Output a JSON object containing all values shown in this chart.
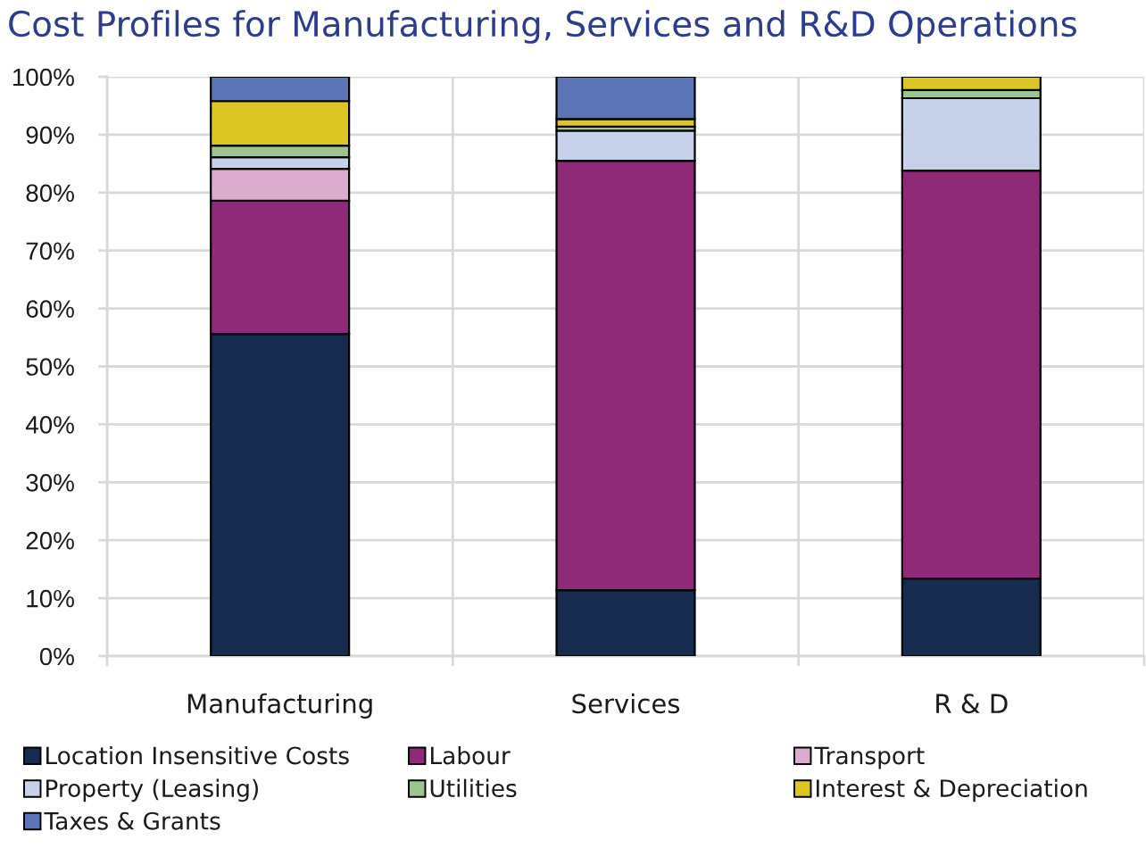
{
  "chart_data": {
    "type": "bar",
    "title": "Cost Profiles for Manufacturing, Services and R&D Operations",
    "categories": [
      "Manufacturing",
      "Services",
      "R & D"
    ],
    "stacked": true,
    "series": [
      {
        "name": "Location Insensitive Costs",
        "color": "#162b4e",
        "values": [
          55.6,
          11.4,
          13.4
        ]
      },
      {
        "name": "Labour",
        "color": "#8f2a78",
        "values": [
          23.0,
          74.1,
          70.4
        ]
      },
      {
        "name": "Transport",
        "color": "#dcaccf",
        "values": [
          5.5,
          null,
          null
        ]
      },
      {
        "name": "Property (Leasing)",
        "color": "#c7d2ea",
        "values": [
          2.0,
          5.2,
          12.5
        ]
      },
      {
        "name": "Utilities",
        "color": "#9dc38f",
        "values": [
          2.0,
          0.7,
          1.4
        ]
      },
      {
        "name": "Interest & Depreciation",
        "color": "#dbc623",
        "values": [
          7.7,
          1.3,
          2.3
        ]
      },
      {
        "name": "Taxes & Grants",
        "color": "#5b75b8",
        "values": [
          4.2,
          7.3,
          null
        ]
      }
    ],
    "ylim": [
      0,
      100
    ],
    "yticks": [
      {
        "value": 0,
        "label": "0%"
      },
      {
        "value": 10,
        "label": "10%"
      },
      {
        "value": 20,
        "label": "20%"
      },
      {
        "value": 30,
        "label": "30%"
      },
      {
        "value": 40,
        "label": "40%"
      },
      {
        "value": 50,
        "label": "50%"
      },
      {
        "value": 60,
        "label": "60%"
      },
      {
        "value": 70,
        "label": "70%"
      },
      {
        "value": 80,
        "label": "80%"
      },
      {
        "value": 90,
        "label": "90%"
      },
      {
        "value": 100,
        "label": "100%"
      }
    ],
    "grid": true,
    "legend": "bottom"
  }
}
